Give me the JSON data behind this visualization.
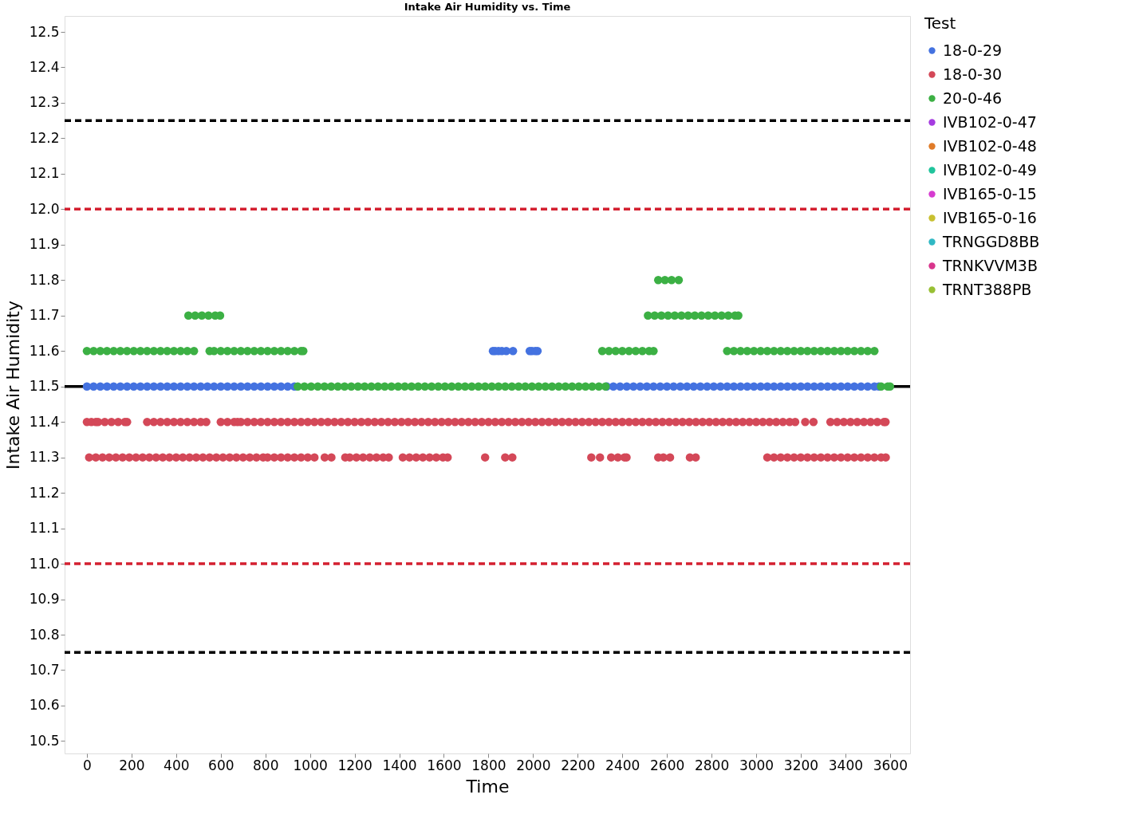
{
  "chart_data": {
    "type": "scatter",
    "title": "Intake Air Humidity vs. Time",
    "xlabel": "Time",
    "ylabel": "Intake Air Humidity",
    "legend_title": "Test",
    "xlim": [
      -100,
      3690
    ],
    "ylim": [
      10.465,
      12.545
    ],
    "xticks": [
      0,
      200,
      400,
      600,
      800,
      1000,
      1200,
      1400,
      1600,
      1800,
      2000,
      2200,
      2400,
      2600,
      2800,
      3000,
      3200,
      3400,
      3600
    ],
    "yticks": [
      10.5,
      10.6,
      10.7,
      10.8,
      10.9,
      {
        "value": 11,
        "label": "11.0"
      },
      11.1,
      11.2,
      11.3,
      11.4,
      11.5,
      11.6,
      11.7,
      11.8,
      11.9,
      {
        "value": 12,
        "label": "12.0"
      },
      12.1,
      12.2,
      12.3,
      12.4,
      12.5
    ],
    "grid": false,
    "legend": "right",
    "ref_lines": [
      {
        "axis": "y",
        "value": 12.25,
        "color": "#000000",
        "line_style": "dashed"
      },
      {
        "axis": "y",
        "value": 12.0,
        "color": "#d42030",
        "line_style": "dashed"
      },
      {
        "axis": "y",
        "value": 11.5,
        "color": "#000000",
        "line_style": "solid"
      },
      {
        "axis": "y",
        "value": 11.0,
        "color": "#d42030",
        "line_style": "dashed"
      },
      {
        "axis": "y",
        "value": 10.75,
        "color": "#000000",
        "line_style": "dashed"
      }
    ],
    "series": [
      {
        "name": "18-0-29",
        "color": "#4472e0",
        "x": [
          0,
          30,
          60,
          90,
          120,
          150,
          180,
          210,
          240,
          270,
          300,
          330,
          360,
          390,
          420,
          450,
          480,
          510,
          540,
          570,
          600,
          630,
          660,
          690,
          720,
          750,
          780,
          810,
          840,
          870,
          900,
          930,
          1820,
          1830,
          1845,
          1860,
          1880,
          1910,
          1985,
          1995,
          2010,
          2020,
          2330,
          2360,
          2390,
          2420,
          2450,
          2480,
          2510,
          2540,
          2570,
          2600,
          2630,
          2660,
          2690,
          2720,
          2750,
          2780,
          2810,
          2840,
          2870,
          2900,
          2930,
          2960,
          2990,
          3020,
          3050,
          3080,
          3110,
          3140,
          3170,
          3200,
          3230,
          3260,
          3290,
          3320,
          3350,
          3380,
          3410,
          3440,
          3470,
          3500,
          3530,
          3550
        ],
        "values": [
          11.5,
          11.5,
          11.5,
          11.5,
          11.5,
          11.5,
          11.5,
          11.5,
          11.5,
          11.5,
          11.5,
          11.5,
          11.5,
          11.5,
          11.5,
          11.5,
          11.5,
          11.5,
          11.5,
          11.5,
          11.5,
          11.5,
          11.5,
          11.5,
          11.5,
          11.5,
          11.5,
          11.5,
          11.5,
          11.5,
          11.5,
          11.5,
          11.6,
          11.6,
          11.6,
          11.6,
          11.6,
          11.6,
          11.6,
          11.6,
          11.6,
          11.6,
          11.5,
          11.5,
          11.5,
          11.5,
          11.5,
          11.5,
          11.5,
          11.5,
          11.5,
          11.5,
          11.5,
          11.5,
          11.5,
          11.5,
          11.5,
          11.5,
          11.5,
          11.5,
          11.5,
          11.5,
          11.5,
          11.5,
          11.5,
          11.5,
          11.5,
          11.5,
          11.5,
          11.5,
          11.5,
          11.5,
          11.5,
          11.5,
          11.5,
          11.5,
          11.5,
          11.5,
          11.5,
          11.5,
          11.5,
          11.5,
          11.5,
          11.5
        ]
      },
      {
        "name": "18-0-30",
        "color": "#d44858",
        "x": [
          0,
          20,
          40,
          50,
          80,
          110,
          140,
          170,
          180,
          270,
          300,
          330,
          360,
          390,
          420,
          450,
          480,
          510,
          535,
          600,
          630,
          660,
          675,
          690,
          720,
          750,
          780,
          810,
          840,
          870,
          900,
          930,
          960,
          990,
          1020,
          1050,
          1080,
          1110,
          1140,
          1170,
          1200,
          1230,
          1260,
          1290,
          1320,
          1350,
          1380,
          1410,
          1440,
          1470,
          1500,
          1530,
          1560,
          1590,
          1620,
          1650,
          1680,
          1710,
          1740,
          1770,
          1800,
          1830,
          1860,
          1890,
          1920,
          1950,
          1980,
          2010,
          2040,
          2070,
          2100,
          2130,
          2160,
          2190,
          2220,
          2250,
          2280,
          2310,
          2340,
          2370,
          2400,
          2430,
          2460,
          2490,
          2520,
          2550,
          2580,
          2610,
          2640,
          2670,
          2700,
          2730,
          2760,
          2790,
          2820,
          2850,
          2880,
          2910,
          2940,
          2970,
          3000,
          3030,
          3060,
          3090,
          3120,
          3150,
          3175,
          3220,
          3257,
          3333,
          3363,
          3393,
          3423,
          3453,
          3483,
          3513,
          3543,
          3573,
          3580,
          10,
          40,
          70,
          100,
          130,
          160,
          190,
          220,
          250,
          280,
          310,
          340,
          370,
          400,
          430,
          460,
          490,
          520,
          550,
          580,
          610,
          640,
          670,
          700,
          730,
          760,
          790,
          810,
          840,
          870,
          900,
          930,
          960,
          990,
          1020,
          1066,
          1096,
          1158,
          1178,
          1208,
          1238,
          1268,
          1298,
          1328,
          1353,
          1416,
          1446,
          1476,
          1506,
          1536,
          1566,
          1596,
          1617,
          1785,
          1875,
          1907,
          2261,
          2300,
          2350,
          2380,
          2410,
          2419,
          2561,
          2584,
          2614,
          2703,
          2729,
          3050,
          3080,
          3110,
          3140,
          3170,
          3200,
          3230,
          3260,
          3290,
          3320,
          3350,
          3380,
          3410,
          3440,
          3470,
          3500,
          3530,
          3560,
          3581
        ],
        "values": [
          11.4,
          11.4,
          11.4,
          11.4,
          11.4,
          11.4,
          11.4,
          11.4,
          11.4,
          11.4,
          11.4,
          11.4,
          11.4,
          11.4,
          11.4,
          11.4,
          11.4,
          11.4,
          11.4,
          11.4,
          11.4,
          11.4,
          11.4,
          11.4,
          11.4,
          11.4,
          11.4,
          11.4,
          11.4,
          11.4,
          11.4,
          11.4,
          11.4,
          11.4,
          11.4,
          11.4,
          11.4,
          11.4,
          11.4,
          11.4,
          11.4,
          11.4,
          11.4,
          11.4,
          11.4,
          11.4,
          11.4,
          11.4,
          11.4,
          11.4,
          11.4,
          11.4,
          11.4,
          11.4,
          11.4,
          11.4,
          11.4,
          11.4,
          11.4,
          11.4,
          11.4,
          11.4,
          11.4,
          11.4,
          11.4,
          11.4,
          11.4,
          11.4,
          11.4,
          11.4,
          11.4,
          11.4,
          11.4,
          11.4,
          11.4,
          11.4,
          11.4,
          11.4,
          11.4,
          11.4,
          11.4,
          11.4,
          11.4,
          11.4,
          11.4,
          11.4,
          11.4,
          11.4,
          11.4,
          11.4,
          11.4,
          11.4,
          11.4,
          11.4,
          11.4,
          11.4,
          11.4,
          11.4,
          11.4,
          11.4,
          11.4,
          11.4,
          11.4,
          11.4,
          11.4,
          11.4,
          11.4,
          11.4,
          11.4,
          11.4,
          11.4,
          11.4,
          11.4,
          11.4,
          11.4,
          11.4,
          11.4,
          11.4,
          11.4,
          11.3,
          11.3,
          11.3,
          11.3,
          11.3,
          11.3,
          11.3,
          11.3,
          11.3,
          11.3,
          11.3,
          11.3,
          11.3,
          11.3,
          11.3,
          11.3,
          11.3,
          11.3,
          11.3,
          11.3,
          11.3,
          11.3,
          11.3,
          11.3,
          11.3,
          11.3,
          11.3,
          11.3,
          11.3,
          11.3,
          11.3,
          11.3,
          11.3,
          11.3,
          11.3,
          11.3,
          11.3,
          11.3,
          11.3,
          11.3,
          11.3,
          11.3,
          11.3,
          11.3,
          11.3,
          11.3,
          11.3,
          11.3,
          11.3,
          11.3,
          11.3,
          11.3,
          11.3,
          11.3,
          11.3,
          11.3,
          11.3,
          11.3,
          11.3,
          11.3,
          11.3,
          11.3,
          11.3,
          11.3,
          11.3,
          11.3,
          11.3,
          11.3,
          11.3,
          11.3,
          11.3,
          11.3,
          11.3,
          11.3,
          11.3,
          11.3,
          11.3,
          11.3,
          11.3,
          11.3,
          11.3,
          11.3,
          11.3,
          11.3,
          11.3,
          11.3
        ]
      },
      {
        "name": "20-0-46",
        "color": "#3cb044",
        "x": [
          0,
          30,
          60,
          90,
          120,
          150,
          180,
          210,
          240,
          270,
          300,
          330,
          360,
          390,
          420,
          450,
          480,
          550,
          570,
          600,
          630,
          660,
          690,
          720,
          750,
          780,
          810,
          840,
          870,
          900,
          930,
          960,
          970,
          455,
          485,
          515,
          545,
          575,
          597,
          945,
          975,
          1005,
          1035,
          1065,
          1095,
          1125,
          1155,
          1185,
          1215,
          1245,
          1275,
          1305,
          1335,
          1365,
          1395,
          1425,
          1455,
          1485,
          1515,
          1545,
          1575,
          1605,
          1635,
          1665,
          1695,
          1725,
          1755,
          1785,
          1815,
          1845,
          1875,
          1905,
          1935,
          1965,
          1995,
          2025,
          2055,
          2085,
          2115,
          2145,
          2175,
          2205,
          2235,
          2265,
          2295,
          2325,
          2310,
          2340,
          2370,
          2400,
          2430,
          2460,
          2490,
          2520,
          2540,
          2515,
          2545,
          2575,
          2605,
          2635,
          2665,
          2695,
          2725,
          2755,
          2785,
          2815,
          2845,
          2875,
          2905,
          2920,
          2561,
          2591,
          2621,
          2653,
          2870,
          2900,
          2930,
          2960,
          2990,
          3020,
          3050,
          3080,
          3110,
          3140,
          3170,
          3200,
          3230,
          3260,
          3290,
          3320,
          3350,
          3380,
          3410,
          3440,
          3470,
          3500,
          3530,
          3560,
          3590,
          3600
        ],
        "values": [
          11.6,
          11.6,
          11.6,
          11.6,
          11.6,
          11.6,
          11.6,
          11.6,
          11.6,
          11.6,
          11.6,
          11.6,
          11.6,
          11.6,
          11.6,
          11.6,
          11.6,
          11.6,
          11.6,
          11.6,
          11.6,
          11.6,
          11.6,
          11.6,
          11.6,
          11.6,
          11.6,
          11.6,
          11.6,
          11.6,
          11.6,
          11.6,
          11.6,
          11.7,
          11.7,
          11.7,
          11.7,
          11.7,
          11.7,
          11.5,
          11.5,
          11.5,
          11.5,
          11.5,
          11.5,
          11.5,
          11.5,
          11.5,
          11.5,
          11.5,
          11.5,
          11.5,
          11.5,
          11.5,
          11.5,
          11.5,
          11.5,
          11.5,
          11.5,
          11.5,
          11.5,
          11.5,
          11.5,
          11.5,
          11.5,
          11.5,
          11.5,
          11.5,
          11.5,
          11.5,
          11.5,
          11.5,
          11.5,
          11.5,
          11.5,
          11.5,
          11.5,
          11.5,
          11.5,
          11.5,
          11.5,
          11.5,
          11.5,
          11.5,
          11.5,
          11.5,
          11.6,
          11.6,
          11.6,
          11.6,
          11.6,
          11.6,
          11.6,
          11.6,
          11.6,
          11.7,
          11.7,
          11.7,
          11.7,
          11.7,
          11.7,
          11.7,
          11.7,
          11.7,
          11.7,
          11.7,
          11.7,
          11.7,
          11.7,
          11.7,
          11.8,
          11.8,
          11.8,
          11.8,
          11.6,
          11.6,
          11.6,
          11.6,
          11.6,
          11.6,
          11.6,
          11.6,
          11.6,
          11.6,
          11.6,
          11.6,
          11.6,
          11.6,
          11.6,
          11.6,
          11.6,
          11.6,
          11.6,
          11.6,
          11.6,
          11.6,
          11.6,
          11.5,
          11.5,
          11.5
        ]
      },
      {
        "name": "IVB102-0-47",
        "color": "#a53ce0"
      },
      {
        "name": "IVB102-0-48",
        "color": "#e07b28"
      },
      {
        "name": "IVB102-0-49",
        "color": "#20c49c"
      },
      {
        "name": "IVB165-0-15",
        "color": "#d63cd0"
      },
      {
        "name": "IVB165-0-16",
        "color": "#c8c030"
      },
      {
        "name": "TRNGGD8BB",
        "color": "#30b8c4"
      },
      {
        "name": "TRNKVVM3B",
        "color": "#d8358c"
      },
      {
        "name": "TRNT388PB",
        "color": "#98c034"
      }
    ]
  }
}
